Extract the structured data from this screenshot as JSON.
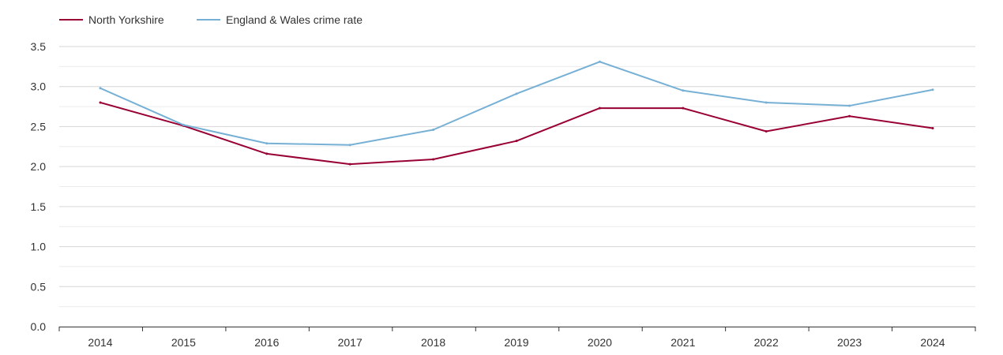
{
  "chart_data": {
    "type": "line",
    "title": "",
    "xlabel": "",
    "ylabel": "",
    "ylim": [
      0,
      3.5
    ],
    "y_ticks": [
      "0.0",
      "0.5",
      "1.0",
      "1.5",
      "2.0",
      "2.5",
      "3.0",
      "3.5"
    ],
    "categories": [
      "2014",
      "2015",
      "2016",
      "2017",
      "2018",
      "2019",
      "2020",
      "2021",
      "2022",
      "2023",
      "2024"
    ],
    "grid": true,
    "legend_position": "top-left",
    "series": [
      {
        "name": "North Yorkshire",
        "color": "#990033",
        "values": [
          2.8,
          2.51,
          2.16,
          2.03,
          2.09,
          2.32,
          2.73,
          2.73,
          2.44,
          2.63,
          2.48
        ]
      },
      {
        "name": "England & Wales crime rate",
        "color": "#77b0d5",
        "values": [
          2.98,
          2.52,
          2.29,
          2.27,
          2.46,
          2.91,
          3.31,
          2.95,
          2.8,
          2.76,
          2.96
        ]
      }
    ]
  }
}
